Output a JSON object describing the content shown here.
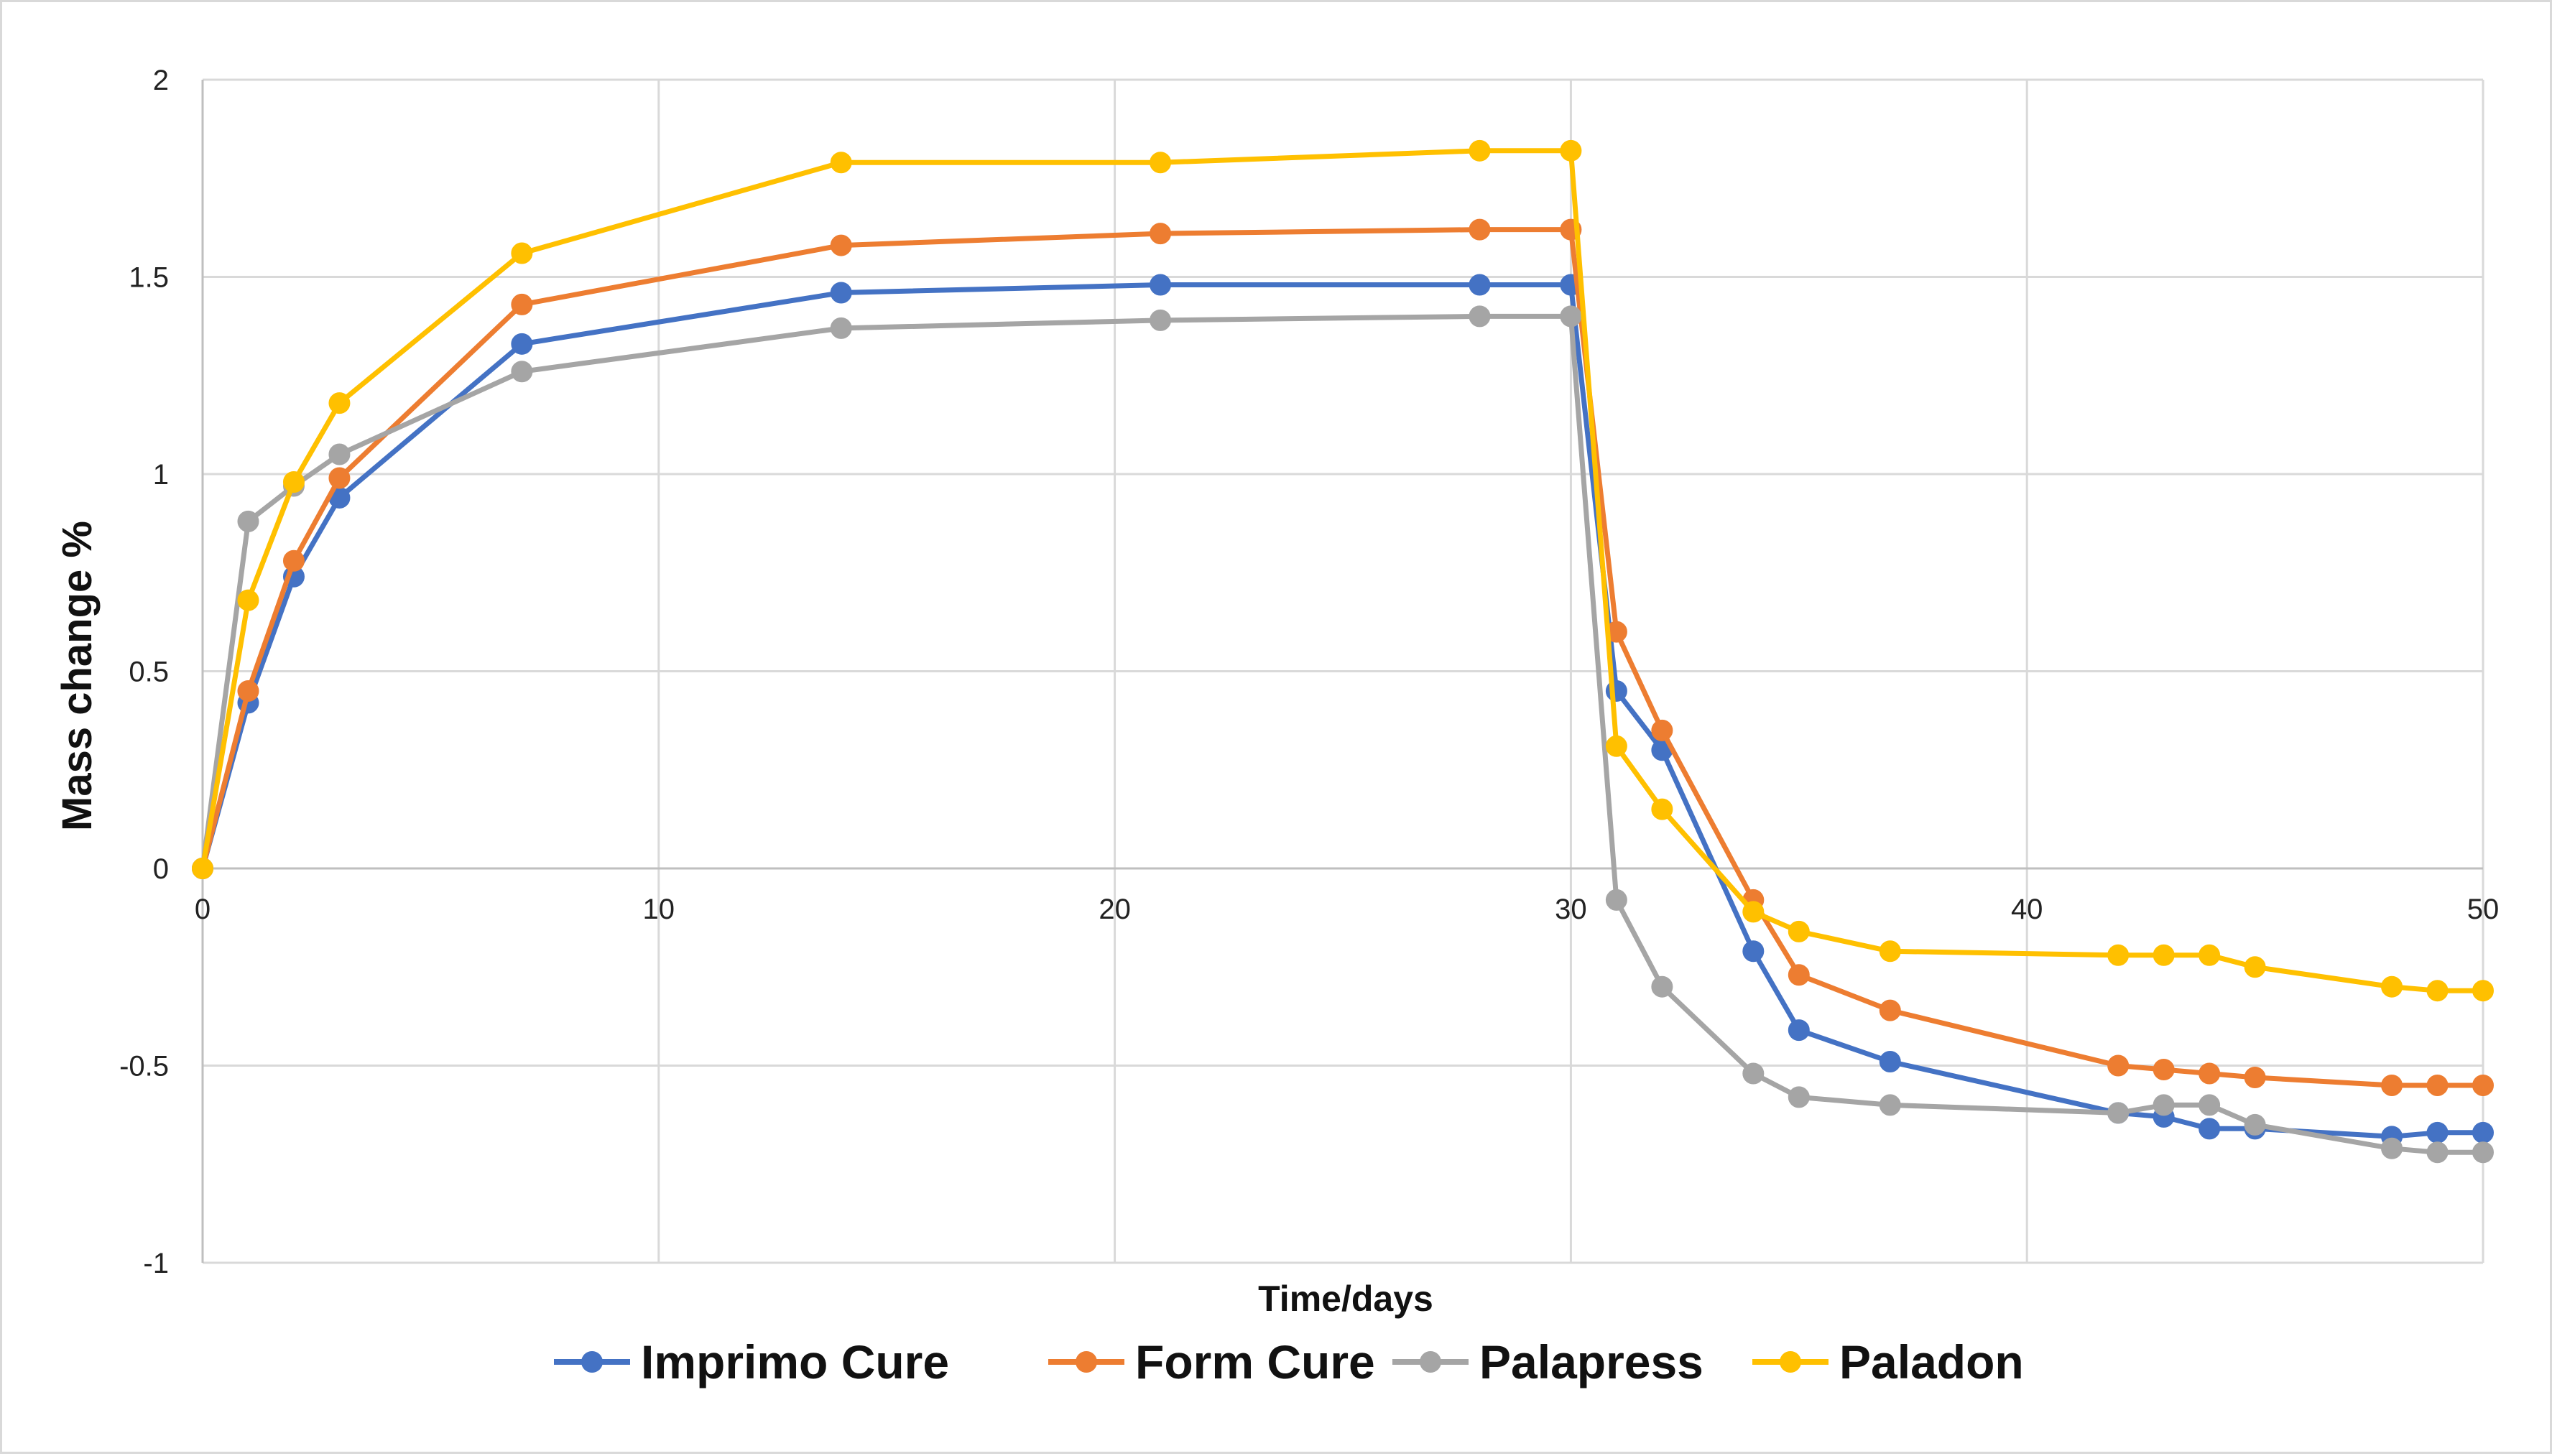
{
  "chart_data": {
    "type": "line",
    "title": "",
    "xlabel": "Time/days",
    "ylabel": "Mass change %",
    "xlim": [
      0,
      50
    ],
    "ylim": [
      -1,
      2
    ],
    "x_ticks": [
      0,
      10,
      20,
      30,
      40,
      50
    ],
    "y_ticks": [
      2,
      1.5,
      1,
      0.5,
      0,
      -0.5,
      -1
    ],
    "y_tick_labels": [
      "2",
      "1.5",
      "1",
      "0.5",
      "0",
      "-0.5",
      "-1"
    ],
    "x_tick_labels": [
      "0",
      "10",
      "20",
      "30",
      "40",
      "50"
    ],
    "grid": true,
    "legend_position": "bottom",
    "x": [
      0,
      1,
      2,
      3,
      7,
      14,
      21,
      28,
      30,
      31,
      32,
      34,
      35,
      37,
      42,
      43,
      44,
      45,
      48,
      49,
      50
    ],
    "series": [
      {
        "name": "Imprimo Cure",
        "color": "#4472c4",
        "values": [
          0,
          0.42,
          0.74,
          0.94,
          1.33,
          1.46,
          1.48,
          1.48,
          1.48,
          0.45,
          0.3,
          -0.21,
          -0.41,
          -0.49,
          -0.62,
          -0.63,
          -0.66,
          -0.66,
          -0.68,
          -0.67,
          -0.67
        ]
      },
      {
        "name": "Form Cure",
        "color": "#ed7d31",
        "values": [
          0,
          0.45,
          0.78,
          0.99,
          1.43,
          1.58,
          1.61,
          1.62,
          1.62,
          0.6,
          0.35,
          -0.08,
          -0.27,
          -0.36,
          -0.5,
          -0.51,
          -0.52,
          -0.53,
          -0.55,
          -0.55,
          -0.55
        ]
      },
      {
        "name": "Palapress",
        "color": "#a5a5a5",
        "values": [
          0,
          0.88,
          0.97,
          1.05,
          1.26,
          1.37,
          1.39,
          1.4,
          1.4,
          -0.08,
          -0.3,
          -0.52,
          -0.58,
          -0.6,
          -0.62,
          -0.6,
          -0.6,
          -0.65,
          -0.71,
          -0.72,
          -0.72
        ]
      },
      {
        "name": "Paladon",
        "color": "#ffc000",
        "values": [
          0,
          0.68,
          0.98,
          1.18,
          1.56,
          1.79,
          1.79,
          1.82,
          1.82,
          0.31,
          0.15,
          -0.11,
          -0.16,
          -0.21,
          -0.22,
          -0.22,
          -0.22,
          -0.25,
          -0.3,
          -0.31,
          -0.31
        ]
      }
    ]
  }
}
